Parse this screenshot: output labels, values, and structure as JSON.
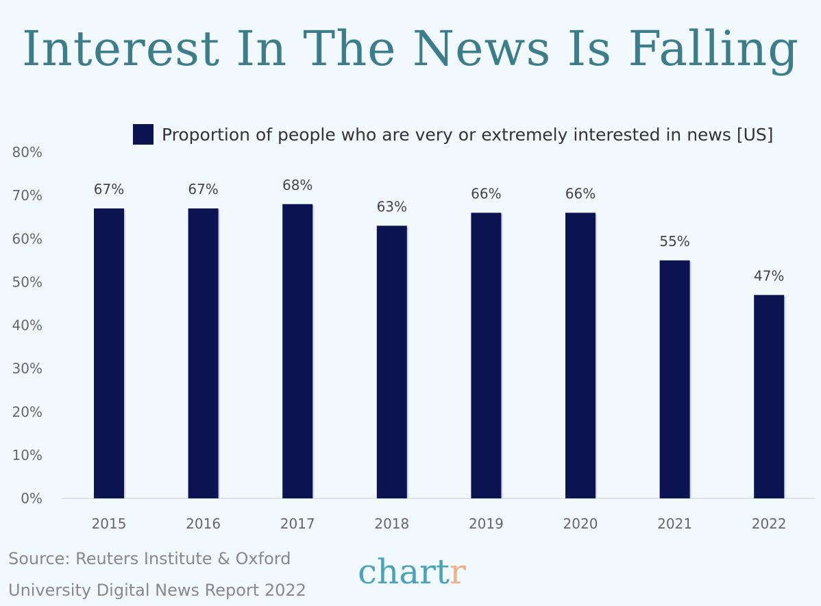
{
  "title": "Interest In The News Is Falling",
  "chart_data": {
    "type": "bar",
    "title": "Interest In The News Is Falling",
    "categories": [
      "2015",
      "2016",
      "2017",
      "2018",
      "2019",
      "2020",
      "2021",
      "2022"
    ],
    "series": [
      {
        "name": "Proportion of people who are very or extremely interested in news [US]",
        "values": [
          67,
          67,
          68,
          63,
          66,
          66,
          55,
          47
        ]
      }
    ],
    "data_labels": [
      "67%",
      "67%",
      "68%",
      "63%",
      "66%",
      "66%",
      "55%",
      "47%"
    ],
    "yticks": [
      "0%",
      "10%",
      "20%",
      "30%",
      "40%",
      "50%",
      "60%",
      "70%",
      "80%"
    ],
    "ylim": [
      0,
      80
    ],
    "grid": false,
    "legend_position": "top",
    "bar_color": "#0b1450"
  },
  "source": {
    "line1": "Source: Reuters Institute & Oxford",
    "line2": "University Digital News Report 2022"
  },
  "logo": {
    "main": "chart",
    "accent": "r"
  }
}
